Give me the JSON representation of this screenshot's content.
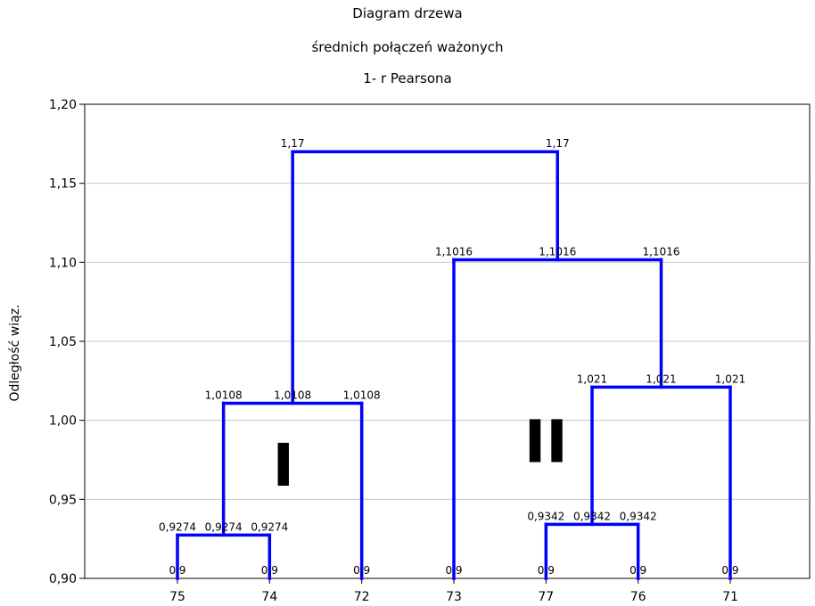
{
  "chart_data": {
    "type": "dendrogram",
    "title_lines": [
      "Diagram drzewa",
      "średnich połączeń ważonych",
      "1- r Pearsona"
    ],
    "ylabel": "Odległość wiąz.",
    "xlabel": "",
    "ylim": [
      0.9,
      1.2
    ],
    "yticks": [
      {
        "value": 0.9,
        "label": "0,90"
      },
      {
        "value": 0.95,
        "label": "0,95"
      },
      {
        "value": 1.0,
        "label": "1,00"
      },
      {
        "value": 1.05,
        "label": "1,05"
      },
      {
        "value": 1.1,
        "label": "1,10"
      },
      {
        "value": 1.15,
        "label": "1,15"
      },
      {
        "value": 1.2,
        "label": "1,20"
      }
    ],
    "leaves": [
      "75",
      "74",
      "72",
      "73",
      "77",
      "76",
      "71"
    ],
    "merges": [
      {
        "children": [
          "75",
          "74"
        ],
        "height": 0.9274
      },
      {
        "children": [
          "77",
          "76"
        ],
        "height": 0.9342
      },
      {
        "children": [
          "75-74",
          "72"
        ],
        "height": 1.0108
      },
      {
        "children": [
          "77-76",
          "71"
        ],
        "height": 1.021
      },
      {
        "children": [
          "73",
          "77-76-71"
        ],
        "height": 1.1016
      },
      {
        "children": [
          "75-74-72",
          "73-77-76-71"
        ],
        "height": 1.17
      }
    ],
    "segments": [
      {
        "x1": 0,
        "y1": 0.9,
        "x2": 0,
        "y2": 0.9274
      },
      {
        "x1": 1,
        "y1": 0.9,
        "x2": 1,
        "y2": 0.9274
      },
      {
        "x1": 0,
        "y1": 0.9274,
        "x2": 1,
        "y2": 0.9274
      },
      {
        "x1": 0.5,
        "y1": 0.9274,
        "x2": 0.5,
        "y2": 1.0108
      },
      {
        "x1": 2,
        "y1": 0.9,
        "x2": 2,
        "y2": 1.0108
      },
      {
        "x1": 0.5,
        "y1": 1.0108,
        "x2": 2,
        "y2": 1.0108
      },
      {
        "x1": 4,
        "y1": 0.9,
        "x2": 4,
        "y2": 0.9342
      },
      {
        "x1": 5,
        "y1": 0.9,
        "x2": 5,
        "y2": 0.9342
      },
      {
        "x1": 4,
        "y1": 0.9342,
        "x2": 5,
        "y2": 0.9342
      },
      {
        "x1": 4.5,
        "y1": 0.9342,
        "x2": 4.5,
        "y2": 1.021
      },
      {
        "x1": 6,
        "y1": 0.9,
        "x2": 6,
        "y2": 1.021
      },
      {
        "x1": 4.5,
        "y1": 1.021,
        "x2": 6,
        "y2": 1.021
      },
      {
        "x1": 3,
        "y1": 0.9,
        "x2": 3,
        "y2": 1.1016
      },
      {
        "x1": 5.25,
        "y1": 1.021,
        "x2": 5.25,
        "y2": 1.1016
      },
      {
        "x1": 3,
        "y1": 1.1016,
        "x2": 5.25,
        "y2": 1.1016
      },
      {
        "x1": 1.25,
        "y1": 1.0108,
        "x2": 1.25,
        "y2": 1.17
      },
      {
        "x1": 4.125,
        "y1": 1.1016,
        "x2": 4.125,
        "y2": 1.17
      },
      {
        "x1": 1.25,
        "y1": 1.17,
        "x2": 4.125,
        "y2": 1.17
      }
    ],
    "data_labels": [
      {
        "x": 0,
        "y": 0.9,
        "text": "0,9"
      },
      {
        "x": 1,
        "y": 0.9,
        "text": "0,9"
      },
      {
        "x": 2,
        "y": 0.9,
        "text": "0,9"
      },
      {
        "x": 3,
        "y": 0.9,
        "text": "0,9"
      },
      {
        "x": 4,
        "y": 0.9,
        "text": "0,9"
      },
      {
        "x": 5,
        "y": 0.9,
        "text": "0,9"
      },
      {
        "x": 6,
        "y": 0.9,
        "text": "0,9"
      },
      {
        "x": 0,
        "y": 0.9274,
        "text": "0,9274"
      },
      {
        "x": 0.5,
        "y": 0.9274,
        "text": "0,9274"
      },
      {
        "x": 1,
        "y": 0.9274,
        "text": "0,9274"
      },
      {
        "x": 4,
        "y": 0.9342,
        "text": "0,9342"
      },
      {
        "x": 4.5,
        "y": 0.9342,
        "text": "0,9342"
      },
      {
        "x": 5,
        "y": 0.9342,
        "text": "0,9342"
      },
      {
        "x": 0.5,
        "y": 1.0108,
        "text": "1,0108"
      },
      {
        "x": 1.25,
        "y": 1.0108,
        "text": "1,0108"
      },
      {
        "x": 2,
        "y": 1.0108,
        "text": "1,0108"
      },
      {
        "x": 4.5,
        "y": 1.021,
        "text": "1,021"
      },
      {
        "x": 5.25,
        "y": 1.021,
        "text": "1,021"
      },
      {
        "x": 6,
        "y": 1.021,
        "text": "1,021"
      },
      {
        "x": 3,
        "y": 1.1016,
        "text": "1,1016"
      },
      {
        "x": 4.125,
        "y": 1.1016,
        "text": "1,1016"
      },
      {
        "x": 5.25,
        "y": 1.1016,
        "text": "1,1016"
      },
      {
        "x": 1.25,
        "y": 1.17,
        "text": "1,17"
      },
      {
        "x": 4.125,
        "y": 1.17,
        "text": "1,17"
      }
    ],
    "annotations": [
      {
        "text": "I",
        "x": 1.15,
        "y": 0.97
      },
      {
        "text": "II",
        "x": 4.0,
        "y": 0.985
      }
    ],
    "grid": {
      "horizontal": true,
      "vertical": false
    },
    "line_color": "#0000ff",
    "grid_color": "#c8c8c8"
  }
}
